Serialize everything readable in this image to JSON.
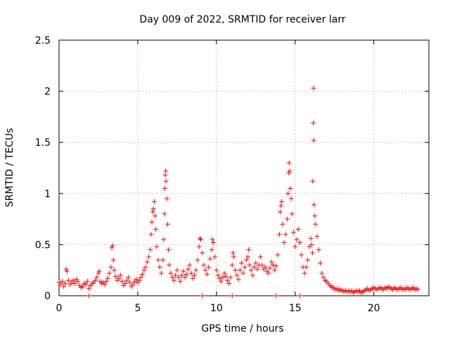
{
  "chart_data": {
    "type": "scatter",
    "title": "Day 009 of 2022, SRMTID for receiver larr",
    "xlabel": "GPS time / hours",
    "ylabel": "SRMTID / TECUs",
    "xlim": [
      0,
      23.5
    ],
    "ylim": [
      0,
      2.5
    ],
    "xticks": [
      0,
      5,
      10,
      15,
      20
    ],
    "xtick_labels": [
      "0",
      "5",
      "10",
      "15",
      "20"
    ],
    "yticks": [
      0,
      0.5,
      1,
      1.5,
      2,
      2.5
    ],
    "ytick_labels": [
      "0",
      "0.5",
      "1",
      "1.5",
      "2",
      "2.5"
    ],
    "grid": true,
    "marker": "plus",
    "color": "#ff0000",
    "series": [
      {
        "name": "SRMTID",
        "points": [
          [
            0.0,
            0.13
          ],
          [
            0.1,
            0.11
          ],
          [
            0.2,
            0.14
          ],
          [
            0.3,
            0.09
          ],
          [
            0.4,
            0.12
          ],
          [
            0.45,
            0.26
          ],
          [
            0.5,
            0.24
          ],
          [
            0.6,
            0.15
          ],
          [
            0.7,
            0.11
          ],
          [
            0.8,
            0.13
          ],
          [
            0.9,
            0.15
          ],
          [
            1.0,
            0.12
          ],
          [
            1.1,
            0.16
          ],
          [
            1.2,
            0.14
          ],
          [
            1.3,
            0.1
          ],
          [
            1.4,
            0.08
          ],
          [
            1.5,
            0.09
          ],
          [
            1.6,
            0.12
          ],
          [
            1.7,
            0.11
          ],
          [
            1.8,
            0.14
          ],
          [
            1.9,
            0.07
          ],
          [
            2.0,
            0.1
          ],
          [
            2.1,
            0.12
          ],
          [
            2.2,
            0.13
          ],
          [
            2.3,
            0.15
          ],
          [
            2.4,
            0.18
          ],
          [
            2.5,
            0.22
          ],
          [
            2.55,
            0.24
          ],
          [
            2.6,
            0.14
          ],
          [
            2.7,
            0.12
          ],
          [
            2.8,
            0.13
          ],
          [
            2.9,
            0.11
          ],
          [
            3.0,
            0.14
          ],
          [
            3.1,
            0.17
          ],
          [
            3.2,
            0.22
          ],
          [
            3.3,
            0.28
          ],
          [
            3.35,
            0.47
          ],
          [
            3.4,
            0.49
          ],
          [
            3.45,
            0.35
          ],
          [
            3.5,
            0.25
          ],
          [
            3.6,
            0.19
          ],
          [
            3.7,
            0.15
          ],
          [
            3.8,
            0.17
          ],
          [
            3.9,
            0.2
          ],
          [
            4.0,
            0.14
          ],
          [
            4.1,
            0.1
          ],
          [
            4.2,
            0.12
          ],
          [
            4.3,
            0.15
          ],
          [
            4.4,
            0.18
          ],
          [
            4.5,
            0.13
          ],
          [
            4.6,
            0.09
          ],
          [
            4.7,
            0.11
          ],
          [
            4.8,
            0.14
          ],
          [
            4.9,
            0.16
          ],
          [
            5.0,
            0.13
          ],
          [
            5.1,
            0.15
          ],
          [
            5.2,
            0.18
          ],
          [
            5.3,
            0.21
          ],
          [
            5.4,
            0.25
          ],
          [
            5.5,
            0.28
          ],
          [
            5.6,
            0.33
          ],
          [
            5.7,
            0.38
          ],
          [
            5.8,
            0.45
          ],
          [
            5.85,
            0.6
          ],
          [
            5.9,
            0.72
          ],
          [
            5.95,
            0.82
          ],
          [
            6.0,
            0.85
          ],
          [
            6.05,
            0.92
          ],
          [
            6.1,
            0.78
          ],
          [
            6.15,
            0.65
          ],
          [
            6.2,
            0.48
          ],
          [
            6.3,
            0.35
          ],
          [
            6.4,
            0.28
          ],
          [
            6.5,
            0.22
          ],
          [
            6.6,
            0.35
          ],
          [
            6.65,
            0.55
          ],
          [
            6.7,
            0.8
          ],
          [
            6.72,
            1.05
          ],
          [
            6.75,
            1.18
          ],
          [
            6.78,
            1.22
          ],
          [
            6.8,
            1.12
          ],
          [
            6.85,
            0.95
          ],
          [
            6.9,
            0.7
          ],
          [
            6.95,
            0.45
          ],
          [
            7.0,
            0.3
          ],
          [
            7.1,
            0.22
          ],
          [
            7.2,
            0.18
          ],
          [
            7.3,
            0.15
          ],
          [
            7.4,
            0.2
          ],
          [
            7.5,
            0.25
          ],
          [
            7.6,
            0.18
          ],
          [
            7.7,
            0.14
          ],
          [
            7.8,
            0.2
          ],
          [
            7.9,
            0.24
          ],
          [
            8.0,
            0.18
          ],
          [
            8.1,
            0.21
          ],
          [
            8.2,
            0.26
          ],
          [
            8.3,
            0.3
          ],
          [
            8.4,
            0.22
          ],
          [
            8.5,
            0.17
          ],
          [
            8.6,
            0.2
          ],
          [
            8.7,
            0.25
          ],
          [
            8.8,
            0.35
          ],
          [
            8.9,
            0.48
          ],
          [
            8.95,
            0.56
          ],
          [
            9.0,
            0.55
          ],
          [
            9.1,
            0.42
          ],
          [
            9.2,
            0.3
          ],
          [
            9.3,
            0.25
          ],
          [
            9.4,
            0.21
          ],
          [
            9.5,
            0.28
          ],
          [
            9.6,
            0.36
          ],
          [
            9.7,
            0.45
          ],
          [
            9.75,
            0.55
          ],
          [
            9.8,
            0.52
          ],
          [
            9.9,
            0.38
          ],
          [
            10.0,
            0.25
          ],
          [
            10.1,
            0.2
          ],
          [
            10.2,
            0.17
          ],
          [
            10.3,
            0.14
          ],
          [
            10.4,
            0.18
          ],
          [
            10.5,
            0.22
          ],
          [
            10.6,
            0.19
          ],
          [
            10.7,
            0.15
          ],
          [
            10.8,
            0.12
          ],
          [
            10.9,
            0.18
          ],
          [
            11.0,
            0.3
          ],
          [
            11.05,
            0.42
          ],
          [
            11.1,
            0.38
          ],
          [
            11.2,
            0.25
          ],
          [
            11.3,
            0.2
          ],
          [
            11.4,
            0.16
          ],
          [
            11.5,
            0.25
          ],
          [
            11.6,
            0.32
          ],
          [
            11.7,
            0.22
          ],
          [
            11.8,
            0.28
          ],
          [
            11.9,
            0.35
          ],
          [
            12.0,
            0.38
          ],
          [
            12.05,
            0.45
          ],
          [
            12.1,
            0.3
          ],
          [
            12.2,
            0.25
          ],
          [
            12.3,
            0.2
          ],
          [
            12.4,
            0.28
          ],
          [
            12.5,
            0.32
          ],
          [
            12.6,
            0.26
          ],
          [
            12.7,
            0.3
          ],
          [
            12.8,
            0.38
          ],
          [
            12.9,
            0.3
          ],
          [
            13.0,
            0.26
          ],
          [
            13.1,
            0.28
          ],
          [
            13.2,
            0.24
          ],
          [
            13.3,
            0.22
          ],
          [
            13.4,
            0.27
          ],
          [
            13.5,
            0.33
          ],
          [
            13.6,
            0.3
          ],
          [
            13.7,
            0.25
          ],
          [
            13.8,
            0.29
          ],
          [
            13.9,
            0.4
          ],
          [
            14.0,
            0.6
          ],
          [
            14.05,
            0.82
          ],
          [
            14.1,
            0.88
          ],
          [
            14.15,
            0.92
          ],
          [
            14.2,
            0.7
          ],
          [
            14.3,
            0.52
          ],
          [
            14.4,
            0.6
          ],
          [
            14.5,
            0.75
          ],
          [
            14.55,
            1.0
          ],
          [
            14.6,
            1.2
          ],
          [
            14.62,
            1.3
          ],
          [
            14.65,
            1.22
          ],
          [
            14.7,
            1.05
          ],
          [
            14.75,
            0.95
          ],
          [
            14.8,
            0.8
          ],
          [
            14.9,
            0.62
          ],
          [
            15.0,
            0.48
          ],
          [
            15.1,
            0.55
          ],
          [
            15.2,
            0.65
          ],
          [
            15.3,
            0.52
          ],
          [
            15.4,
            0.4
          ],
          [
            15.5,
            0.28
          ],
          [
            15.6,
            0.22
          ],
          [
            15.7,
            0.28
          ],
          [
            15.8,
            0.35
          ],
          [
            15.9,
            0.48
          ],
          [
            16.0,
            0.56
          ],
          [
            16.05,
            0.5
          ],
          [
            16.1,
            0.42
          ],
          [
            16.12,
            1.12
          ],
          [
            16.15,
            1.69
          ],
          [
            16.17,
            2.03
          ],
          [
            16.18,
            1.52
          ],
          [
            16.2,
            0.89
          ],
          [
            16.25,
            0.78
          ],
          [
            16.3,
            0.7
          ],
          [
            16.4,
            0.58
          ],
          [
            16.5,
            0.45
          ],
          [
            16.6,
            0.32
          ],
          [
            16.7,
            0.22
          ],
          [
            16.8,
            0.18
          ],
          [
            16.9,
            0.15
          ],
          [
            17.0,
            0.14
          ],
          [
            17.1,
            0.12
          ],
          [
            17.2,
            0.1
          ],
          [
            17.3,
            0.09
          ],
          [
            17.4,
            0.08
          ],
          [
            17.5,
            0.07
          ],
          [
            17.6,
            0.06
          ],
          [
            17.7,
            0.07
          ],
          [
            17.8,
            0.05
          ],
          [
            17.9,
            0.06
          ],
          [
            18.0,
            0.05
          ],
          [
            18.1,
            0.04
          ],
          [
            18.2,
            0.05
          ],
          [
            18.3,
            0.04
          ],
          [
            18.4,
            0.05
          ],
          [
            18.5,
            0.04
          ],
          [
            18.6,
            0.05
          ],
          [
            18.7,
            0.03
          ],
          [
            18.8,
            0.04
          ],
          [
            18.9,
            0.05
          ],
          [
            19.0,
            0.04
          ],
          [
            19.1,
            0.05
          ],
          [
            19.2,
            0.03
          ],
          [
            19.3,
            0.04
          ],
          [
            19.4,
            0.05
          ],
          [
            19.5,
            0.06
          ],
          [
            19.6,
            0.07
          ],
          [
            19.7,
            0.05
          ],
          [
            19.8,
            0.06
          ],
          [
            19.9,
            0.07
          ],
          [
            20.0,
            0.08
          ],
          [
            20.1,
            0.07
          ],
          [
            20.2,
            0.06
          ],
          [
            20.3,
            0.07
          ],
          [
            20.4,
            0.08
          ],
          [
            20.5,
            0.07
          ],
          [
            20.6,
            0.06
          ],
          [
            20.7,
            0.08
          ],
          [
            20.8,
            0.07
          ],
          [
            20.9,
            0.09
          ],
          [
            21.0,
            0.08
          ],
          [
            21.1,
            0.07
          ],
          [
            21.2,
            0.06
          ],
          [
            21.3,
            0.08
          ],
          [
            21.4,
            0.07
          ],
          [
            21.5,
            0.06
          ],
          [
            21.6,
            0.07
          ],
          [
            21.7,
            0.08
          ],
          [
            21.8,
            0.06
          ],
          [
            21.9,
            0.07
          ],
          [
            22.0,
            0.06
          ],
          [
            22.1,
            0.08
          ],
          [
            22.2,
            0.07
          ],
          [
            22.3,
            0.06
          ],
          [
            22.4,
            0.07
          ],
          [
            22.5,
            0.08
          ],
          [
            22.6,
            0.06
          ],
          [
            22.7,
            0.07
          ],
          [
            22.8,
            0.06
          ],
          [
            1.9,
            0.0
          ],
          [
            9.1,
            0.0
          ],
          [
            11.0,
            0.0
          ],
          [
            13.8,
            0.0
          ],
          [
            15.3,
            0.0
          ]
        ]
      }
    ]
  }
}
